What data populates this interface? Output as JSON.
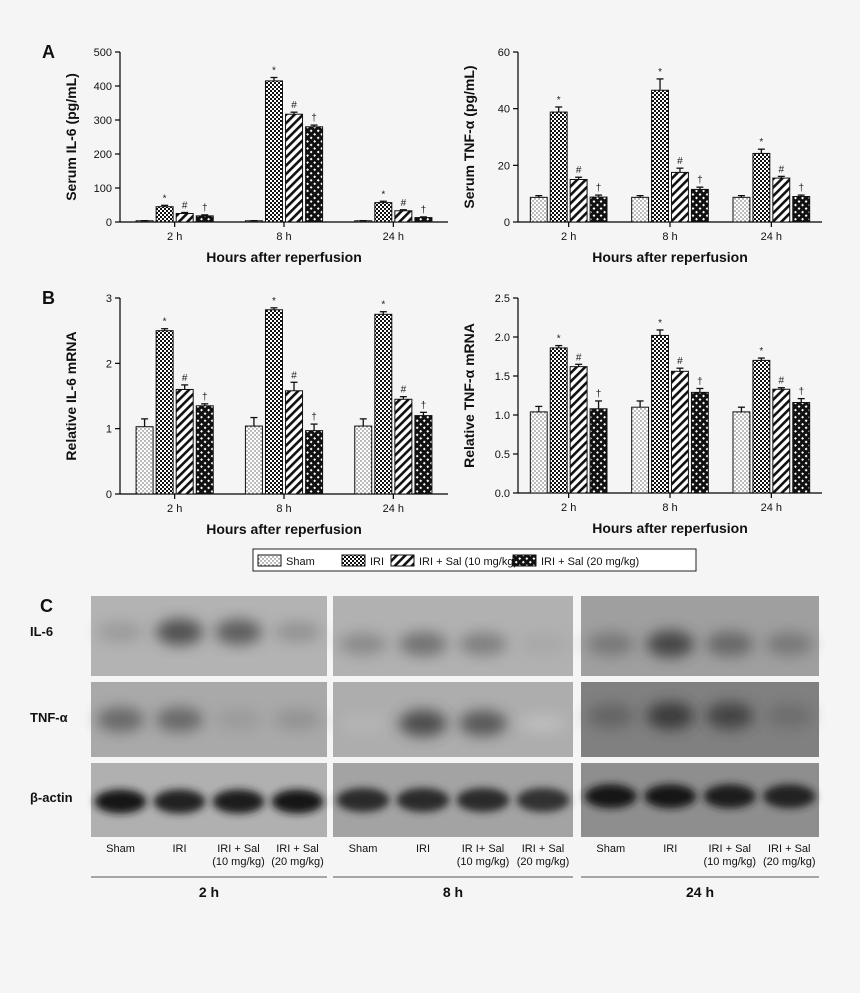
{
  "panel_letters": {
    "a": "A",
    "b": "B",
    "c": "C"
  },
  "chart_data": [
    {
      "type": "bar",
      "categories": [
        "2 h",
        "8 h",
        "24 h"
      ],
      "xlabel": "Hours after reperfusion",
      "ylabel": "Serum IL-6 (pg/mL)",
      "ylim": [
        0,
        500
      ],
      "yticks": [
        0,
        100,
        200,
        300,
        400,
        500
      ],
      "series": [
        {
          "name": "Sham",
          "values": [
            3,
            3,
            3
          ],
          "errors": [
            1,
            1,
            1
          ],
          "marks": [
            "",
            "",
            ""
          ]
        },
        {
          "name": "IRI",
          "values": [
            45,
            415,
            57
          ],
          "errors": [
            4,
            10,
            4
          ],
          "marks": [
            "*",
            "*",
            "*"
          ]
        },
        {
          "name": "IRI + Sal (10 mg/kg)",
          "values": [
            25,
            317,
            33
          ],
          "errors": [
            3,
            6,
            3
          ],
          "marks": [
            "#",
            "#",
            "#"
          ]
        },
        {
          "name": "IRI + Sal (20 mg/kg)",
          "values": [
            18,
            280,
            13
          ],
          "errors": [
            3,
            5,
            2
          ],
          "marks": [
            "†",
            "†",
            "†"
          ]
        }
      ]
    },
    {
      "type": "bar",
      "categories": [
        "2 h",
        "8 h",
        "24 h"
      ],
      "xlabel": "Hours after reperfusion",
      "ylabel": "Serum TNF-α (pg/mL)",
      "ylim": [
        0,
        60
      ],
      "yticks": [
        0,
        20,
        40,
        60
      ],
      "series": [
        {
          "name": "Sham",
          "values": [
            8.7,
            8.7,
            8.7
          ],
          "errors": [
            0.6,
            0.6,
            0.6
          ],
          "marks": [
            "",
            "",
            ""
          ]
        },
        {
          "name": "IRI",
          "values": [
            38.8,
            46.5,
            24.2
          ],
          "errors": [
            1.8,
            4.0,
            1.5
          ],
          "marks": [
            "*",
            "*",
            "*"
          ]
        },
        {
          "name": "IRI + Sal (10 mg/kg)",
          "values": [
            15.0,
            17.5,
            15.5
          ],
          "errors": [
            0.8,
            1.5,
            0.6
          ],
          "marks": [
            "#",
            "#",
            "#"
          ]
        },
        {
          "name": "IRI + Sal (20 mg/kg)",
          "values": [
            8.8,
            11.5,
            9.0
          ],
          "errors": [
            0.7,
            0.8,
            0.5
          ],
          "marks": [
            "†",
            "†",
            "†"
          ]
        }
      ]
    },
    {
      "type": "bar",
      "categories": [
        "2 h",
        "8 h",
        "24 h"
      ],
      "xlabel": "Hours after reperfusion",
      "ylabel": "Relative IL-6 mRNA",
      "ylim": [
        0,
        3
      ],
      "yticks": [
        0,
        1,
        2,
        3
      ],
      "series": [
        {
          "name": "Sham",
          "values": [
            1.03,
            1.04,
            1.04
          ],
          "errors": [
            0.12,
            0.13,
            0.11
          ],
          "marks": [
            "",
            "",
            ""
          ]
        },
        {
          "name": "IRI",
          "values": [
            2.5,
            2.82,
            2.75
          ],
          "errors": [
            0.03,
            0.03,
            0.04
          ],
          "marks": [
            "*",
            "*",
            "*"
          ]
        },
        {
          "name": "IRI + Sal (10 mg/kg)",
          "values": [
            1.6,
            1.58,
            1.45
          ],
          "errors": [
            0.07,
            0.13,
            0.04
          ],
          "marks": [
            "#",
            "#",
            "#"
          ]
        },
        {
          "name": "IRI + Sal (20 mg/kg)",
          "values": [
            1.35,
            0.97,
            1.2
          ],
          "errors": [
            0.03,
            0.1,
            0.05
          ],
          "marks": [
            "†",
            "†",
            "†"
          ]
        }
      ]
    },
    {
      "type": "bar",
      "categories": [
        "2 h",
        "8 h",
        "24 h"
      ],
      "xlabel": "Hours after reperfusion",
      "ylabel": "Relative TNF-α mRNA",
      "ylim": [
        0,
        2.5
      ],
      "yticks": [
        0.0,
        0.5,
        1.0,
        1.5,
        2.0,
        2.5
      ],
      "series": [
        {
          "name": "Sham",
          "values": [
            1.04,
            1.1,
            1.04
          ],
          "errors": [
            0.07,
            0.08,
            0.06
          ],
          "marks": [
            "",
            "",
            ""
          ]
        },
        {
          "name": "IRI",
          "values": [
            1.86,
            2.02,
            1.7
          ],
          "errors": [
            0.03,
            0.07,
            0.03
          ],
          "marks": [
            "*",
            "*",
            "*"
          ]
        },
        {
          "name": "IRI + Sal (10 mg/kg)",
          "values": [
            1.62,
            1.56,
            1.33
          ],
          "errors": [
            0.03,
            0.04,
            0.02
          ],
          "marks": [
            "#",
            "#",
            "#"
          ]
        },
        {
          "name": "IRI + Sal (20 mg/kg)",
          "values": [
            1.08,
            1.29,
            1.16
          ],
          "errors": [
            0.1,
            0.05,
            0.05
          ],
          "marks": [
            "†",
            "†",
            "†"
          ]
        }
      ]
    }
  ],
  "legend": [
    {
      "label": "Sham",
      "pattern": "dots"
    },
    {
      "label": "IRI",
      "pattern": "checker"
    },
    {
      "label": "IRI + Sal (10 mg/kg)",
      "pattern": "diag"
    },
    {
      "label": "IRI + Sal (20 mg/kg)",
      "pattern": "cross"
    }
  ],
  "blot": {
    "row_labels": [
      "IL-6",
      "TNF-α",
      "β-actin"
    ],
    "groups": [
      {
        "time": "2 h",
        "lanes": [
          [
            "Sham"
          ],
          [
            "IRI"
          ],
          [
            "IRI + Sal",
            "(10 mg/kg)"
          ],
          [
            "IRI + Sal",
            "(20 mg/kg)"
          ]
        ]
      },
      {
        "time": "8 h",
        "lanes": [
          [
            "Sham"
          ],
          [
            "IRI"
          ],
          [
            "IR I+ Sal",
            "(10 mg/kg)"
          ],
          [
            "IRI + Sal",
            "(20 mg/kg)"
          ]
        ]
      },
      {
        "time": "24 h",
        "lanes": [
          [
            "Sham"
          ],
          [
            "IRI"
          ],
          [
            "IRI + Sal",
            "(10 mg/kg)"
          ],
          [
            "IRI + Sal",
            "(20 mg/kg)"
          ]
        ]
      }
    ]
  }
}
